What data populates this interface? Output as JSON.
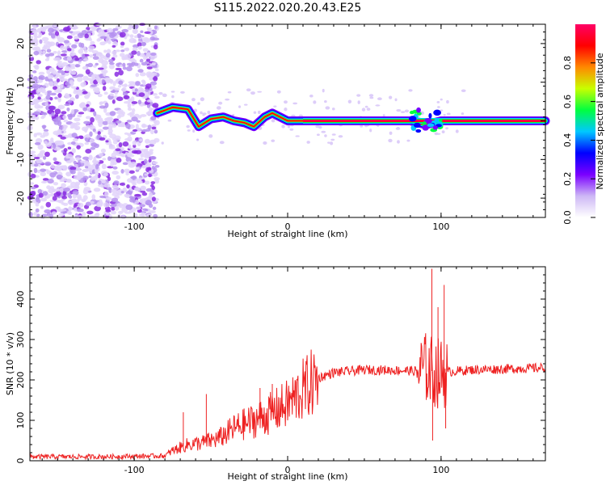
{
  "title": "S115.2022.020.20.43.E25",
  "chart_data": [
    {
      "type": "heatmap",
      "xlabel": "Height of straight line (km)",
      "ylabel": "Frequency (Hz)",
      "xlim": [
        -168,
        168
      ],
      "ylim": [
        -25,
        25
      ],
      "xticks": [
        -100,
        0,
        100
      ],
      "yticks": [
        -20,
        -10,
        0,
        10,
        20
      ],
      "colorbar": {
        "label": "Normalized spectral amplitude",
        "range": [
          0,
          1
        ],
        "ticks": [
          "0.0",
          "0.2",
          "0.4",
          "0.6",
          "0.8"
        ],
        "colormap": [
          "#ffffff",
          "#cdb7f5",
          "#7a00ff",
          "#0000ff",
          "#00c8ff",
          "#00ff40",
          "#c8ff00",
          "#ff8800",
          "#ff0000",
          "#ff0066"
        ]
      },
      "features": {
        "noise_region_x": [
          -168,
          -85
        ],
        "ridge_points": [
          {
            "x": -85,
            "y": 2
          },
          {
            "x": -75,
            "y": 3.5
          },
          {
            "x": -65,
            "y": 3
          },
          {
            "x": -58,
            "y": -1.5
          },
          {
            "x": -50,
            "y": 0.5
          },
          {
            "x": -42,
            "y": 1
          },
          {
            "x": -35,
            "y": 0
          },
          {
            "x": -28,
            "y": -0.5
          },
          {
            "x": -22,
            "y": -1.5
          },
          {
            "x": -15,
            "y": 1
          },
          {
            "x": -10,
            "y": 2
          },
          {
            "x": -5,
            "y": 1
          },
          {
            "x": 0,
            "y": 0
          },
          {
            "x": 10,
            "y": 0
          },
          {
            "x": 80,
            "y": 0
          },
          {
            "x": 90,
            "y": -1
          },
          {
            "x": 100,
            "y": 0
          },
          {
            "x": 168,
            "y": 0
          }
        ]
      }
    },
    {
      "type": "line",
      "xlabel": "Height of straight line (km)",
      "ylabel": "SNR (10 * v/v)",
      "xlim": [
        -168,
        168
      ],
      "ylim": [
        0,
        480
      ],
      "xticks": [
        -100,
        0,
        100
      ],
      "yticks": [
        0,
        100,
        200,
        300,
        400
      ],
      "series": [
        {
          "color": "#ee2222",
          "envelope": [
            [
              -168,
              10
            ],
            [
              -120,
              10
            ],
            [
              -80,
              12
            ],
            [
              -75,
              25
            ],
            [
              -65,
              40
            ],
            [
              -55,
              45
            ],
            [
              -45,
              55
            ],
            [
              -35,
              80
            ],
            [
              -25,
              95
            ],
            [
              -15,
              110
            ],
            [
              -5,
              130
            ],
            [
              0,
              140
            ],
            [
              10,
              175
            ],
            [
              20,
              205
            ],
            [
              30,
              218
            ],
            [
              50,
              225
            ],
            [
              70,
              224
            ],
            [
              85,
              222
            ],
            [
              90,
              230
            ],
            [
              95,
              220
            ],
            [
              100,
              215
            ],
            [
              105,
              220
            ],
            [
              120,
              225
            ],
            [
              150,
              228
            ],
            [
              168,
              230
            ]
          ],
          "spikes": [
            {
              "x": -68,
              "y": 120
            },
            {
              "x": -53,
              "y": 165
            },
            {
              "x": -18,
              "y": 180
            },
            {
              "x": -10,
              "y": 190
            },
            {
              "x": 94,
              "y": 475
            },
            {
              "x": 94.5,
              "y": 50
            },
            {
              "x": 102,
              "y": 435
            },
            {
              "x": 103,
              "y": 80
            },
            {
              "x": 98,
              "y": 380
            }
          ]
        }
      ]
    }
  ]
}
